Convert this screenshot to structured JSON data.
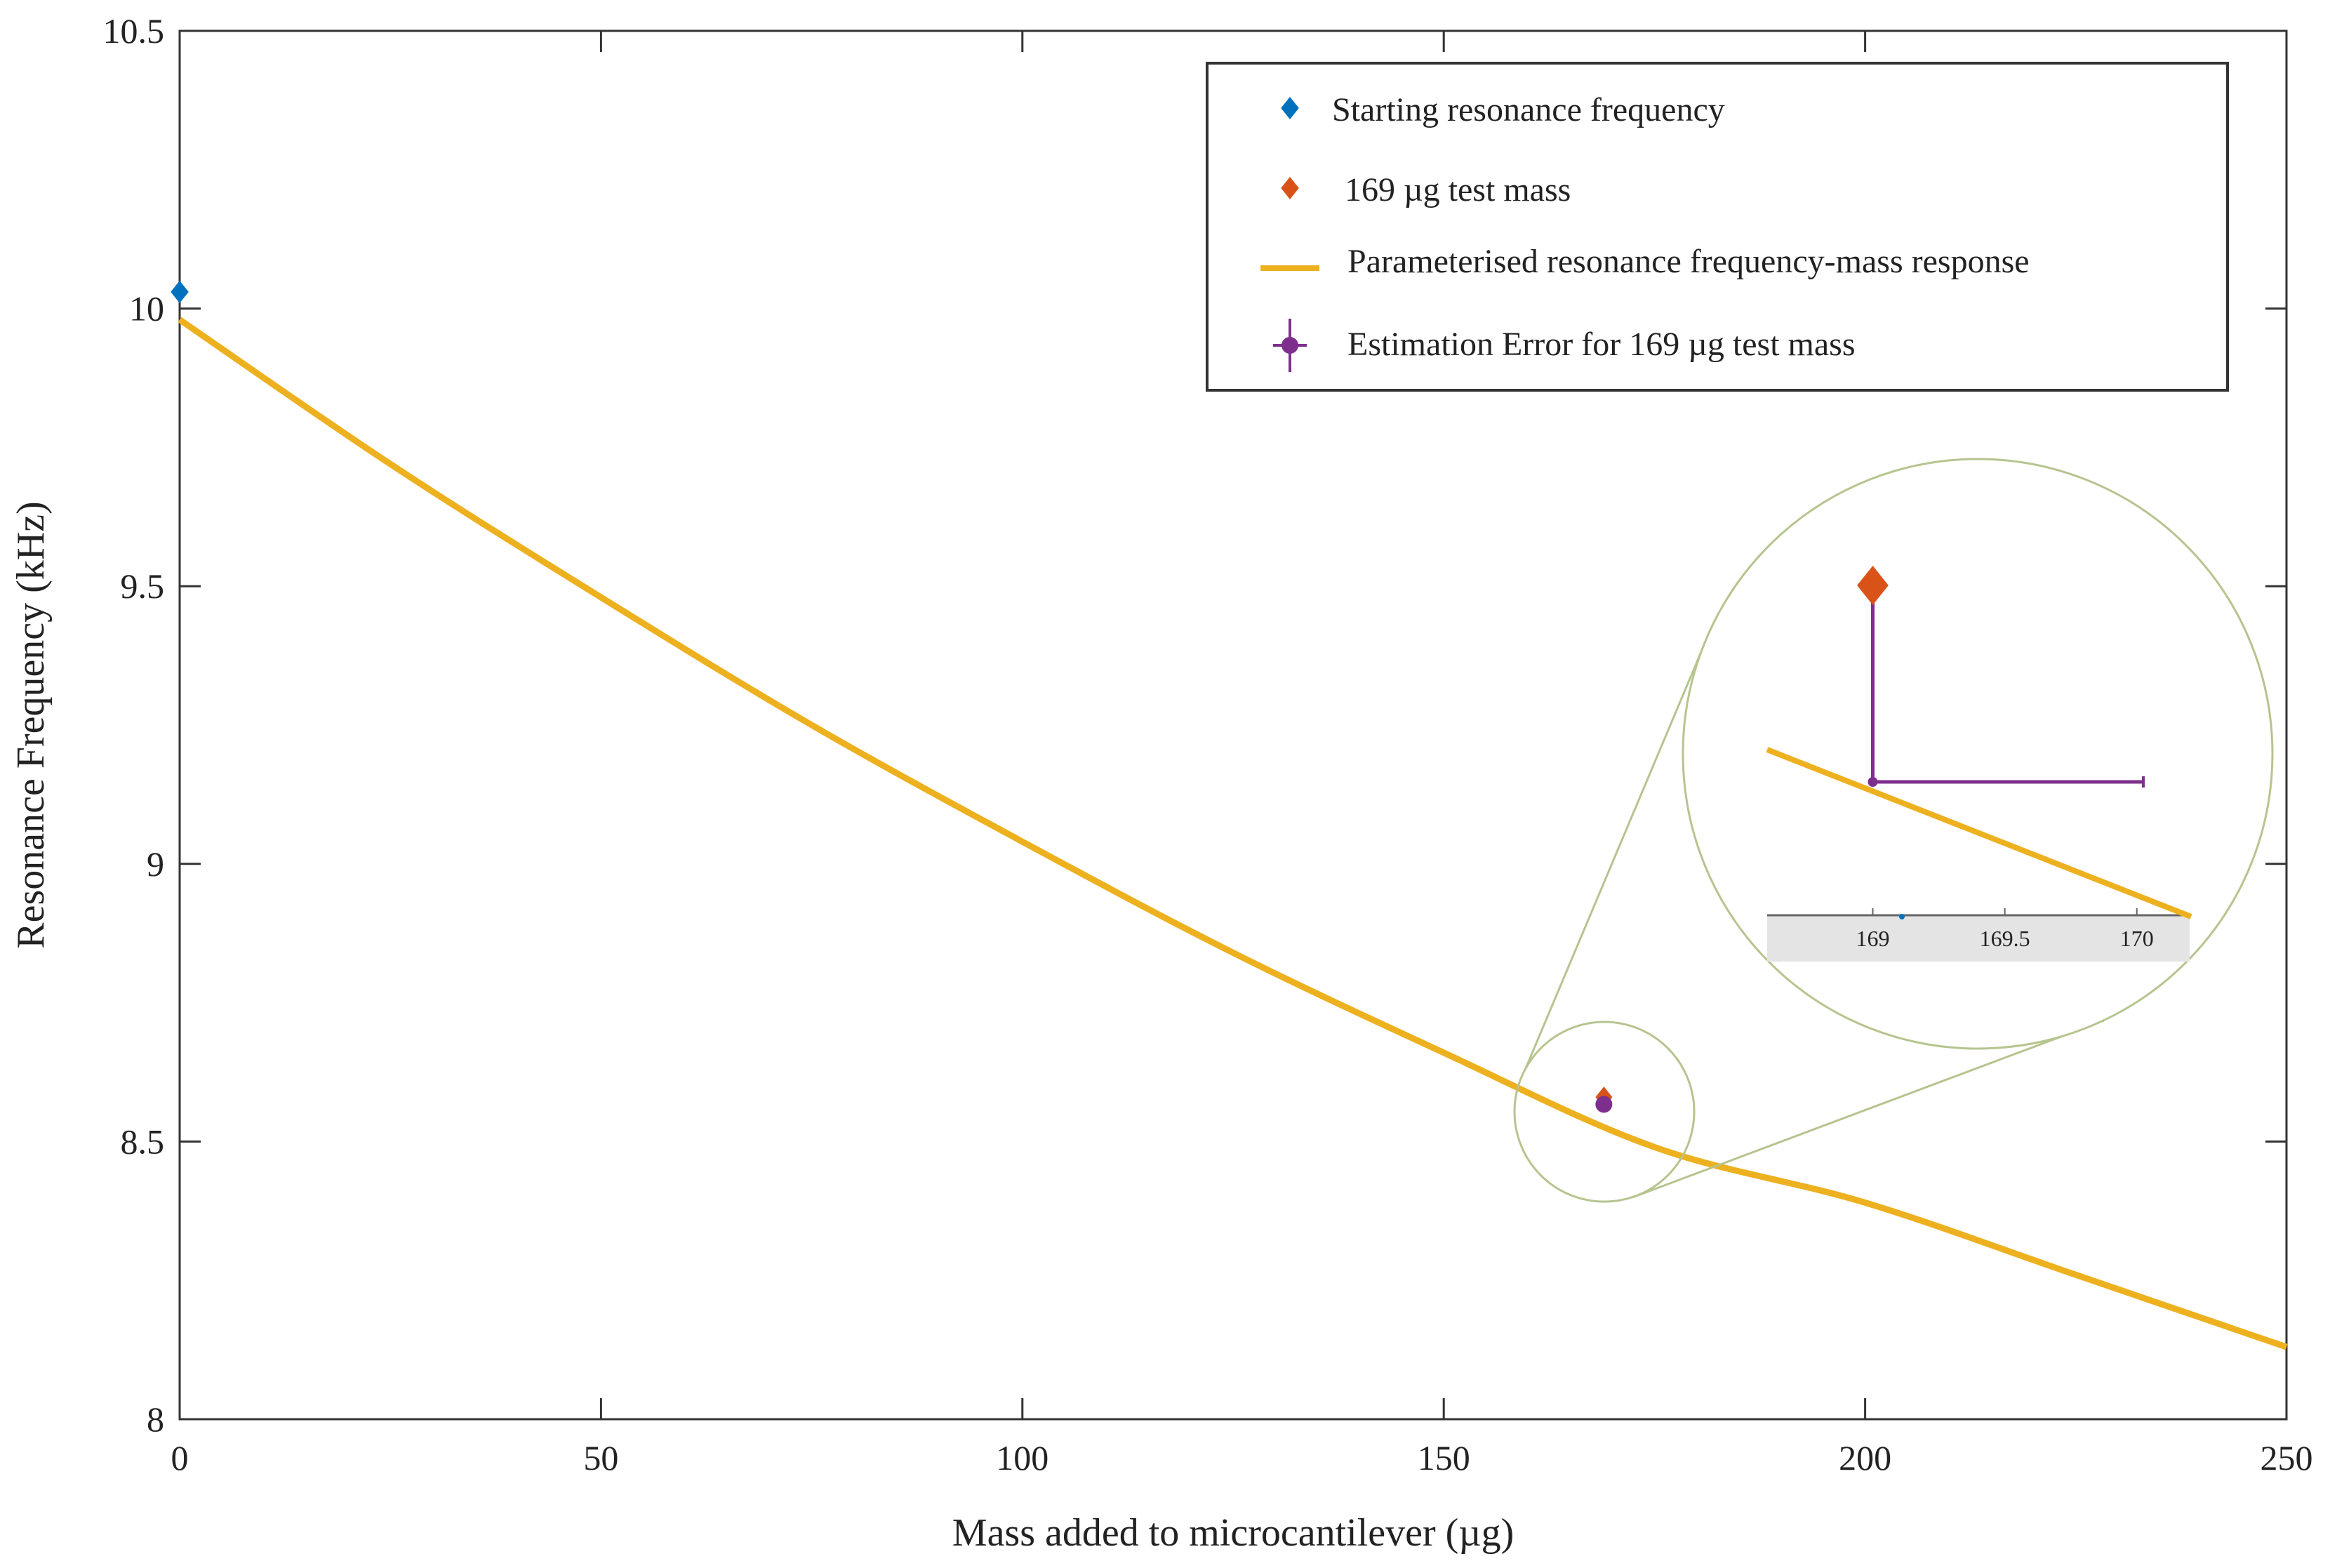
{
  "chart_data": {
    "type": "line",
    "title": "",
    "xlabel": "Mass added to microcantilever (µg)",
    "ylabel": "Resonance Frequency (kHz)",
    "xlim": [
      0,
      250
    ],
    "ylim": [
      8,
      10.5
    ],
    "x_ticks": [
      0,
      50,
      100,
      150,
      200,
      250
    ],
    "x_tick_labels": [
      "0",
      "50",
      "100",
      "150",
      "200",
      "250"
    ],
    "y_ticks": [
      8,
      8.5,
      9,
      9.5,
      10,
      10.5
    ],
    "y_tick_labels": [
      "8",
      "8.5",
      "9",
      "9.5",
      "10",
      "10.5"
    ],
    "grid": false,
    "legend_position": "top-right",
    "series": [
      {
        "name": "Starting resonance frequency",
        "kind": "scatter",
        "marker": "diamond",
        "color": "#0072BD",
        "points": [
          {
            "x": 0,
            "y": 10.03
          }
        ]
      },
      {
        "name": "169 µg test mass",
        "kind": "scatter",
        "marker": "diamond",
        "color": "#D95319",
        "points": [
          {
            "x": 169,
            "y": 8.58
          }
        ]
      },
      {
        "name": "Parameterised resonance frequency-mass response",
        "kind": "line",
        "color": "#EDB120",
        "x": [
          0,
          25,
          50,
          75,
          100,
          125,
          150,
          175,
          200,
          225,
          250
        ],
        "y": [
          9.98,
          9.72,
          9.48,
          9.25,
          9.04,
          8.84,
          8.66,
          8.49,
          8.39,
          8.26,
          8.13
        ]
      },
      {
        "name": "Estimation Error for 169 µg test mass",
        "kind": "errorbar",
        "color": "#7E2F8E",
        "points": [
          {
            "x": 169,
            "y": 8.567
          }
        ]
      }
    ],
    "inset": {
      "shape": "circle",
      "x_ticks": [
        169,
        169.5,
        170
      ],
      "x_tick_labels": [
        "169",
        "169.5",
        "170"
      ],
      "xlim": [
        168.6,
        170.2
      ]
    }
  }
}
